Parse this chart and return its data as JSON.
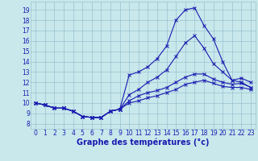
{
  "xlabel": "Graphe des températures (°c)",
  "hours": [
    0,
    1,
    2,
    3,
    4,
    5,
    6,
    7,
    8,
    9,
    10,
    11,
    12,
    13,
    14,
    15,
    16,
    17,
    18,
    19,
    20,
    21,
    22,
    23
  ],
  "line1": [
    10.0,
    9.8,
    9.5,
    9.5,
    9.2,
    8.7,
    8.6,
    8.6,
    9.2,
    9.4,
    12.7,
    13.0,
    13.5,
    14.3,
    15.5,
    18.0,
    19.0,
    19.2,
    17.5,
    16.2,
    14.0,
    12.2,
    12.0,
    11.5
  ],
  "line2": [
    10.0,
    9.8,
    9.5,
    9.5,
    9.2,
    8.7,
    8.6,
    8.6,
    9.2,
    9.4,
    10.8,
    11.3,
    12.0,
    12.5,
    13.2,
    14.5,
    15.8,
    16.5,
    15.3,
    13.8,
    13.0,
    12.2,
    12.4,
    12.0
  ],
  "line3": [
    10.0,
    9.8,
    9.5,
    9.5,
    9.2,
    8.7,
    8.6,
    8.6,
    9.2,
    9.4,
    10.2,
    10.7,
    11.0,
    11.2,
    11.5,
    12.0,
    12.5,
    12.8,
    12.8,
    12.3,
    12.0,
    11.8,
    11.9,
    11.5
  ],
  "line4": [
    10.0,
    9.8,
    9.5,
    9.5,
    9.2,
    8.7,
    8.6,
    8.6,
    9.2,
    9.4,
    10.0,
    10.2,
    10.5,
    10.7,
    11.0,
    11.3,
    11.8,
    12.0,
    12.2,
    11.9,
    11.6,
    11.5,
    11.5,
    11.3
  ],
  "line_color": "#1a1ab0",
  "bg_color": "#c8e8ec",
  "grid_color": "#90b8c8",
  "ylim": [
    7.5,
    19.8
  ],
  "xlim": [
    -0.5,
    23.5
  ],
  "yticks": [
    8,
    9,
    10,
    11,
    12,
    13,
    14,
    15,
    16,
    17,
    18,
    19
  ],
  "xticks": [
    0,
    1,
    2,
    3,
    4,
    5,
    6,
    7,
    8,
    9,
    10,
    11,
    12,
    13,
    14,
    15,
    16,
    17,
    18,
    19,
    20,
    21,
    22,
    23
  ],
  "tick_fontsize": 5.5,
  "xlabel_fontsize": 7.0
}
